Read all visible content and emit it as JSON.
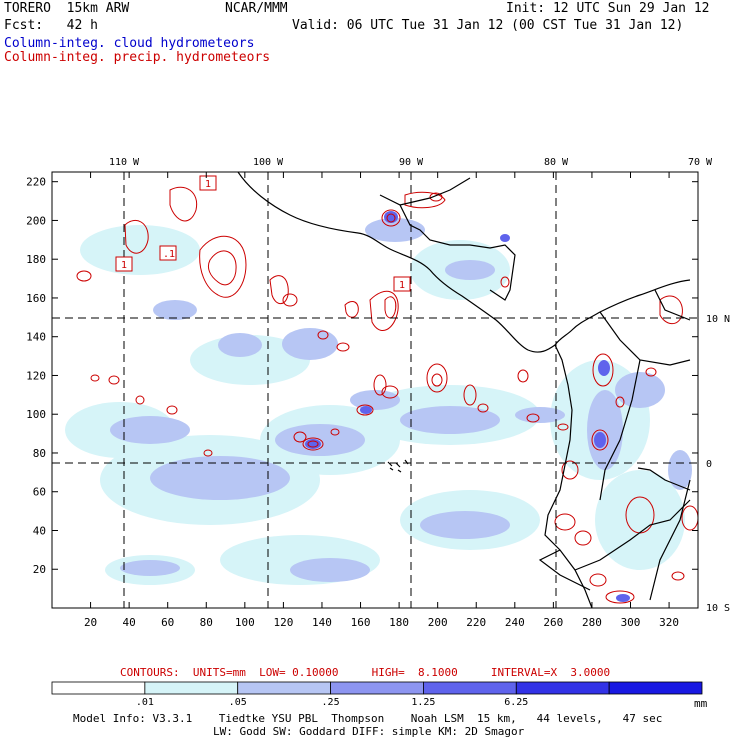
{
  "header": {
    "model": "TORERO  15km ARW",
    "center": "NCAR/MMM",
    "init": "Init: 12 UTC Sun 29 Jan 12",
    "fcst": "Fcst:   42 h",
    "valid": "Valid: 06 UTC Tue 31 Jan 12 (00 CST Tue 31 Jan 12)",
    "field_cloud": "Column-integ. cloud hydrometeors",
    "field_precip": "Column-integ. precip. hydrometeors"
  },
  "contour_info": {
    "line": "CONTOURS:  UNITS=mm  LOW= 0.10000     HIGH=  8.1000     INTERVAL=X  3.0000"
  },
  "colorbar": {
    "labels": [
      ".01",
      ".05",
      ".25",
      "1.25",
      "6.25"
    ],
    "units": "mm",
    "colors": [
      "#ffffff",
      "#d6f4f8",
      "#b7c6f4",
      "#8d95f0",
      "#5f63ec",
      "#3232e6",
      "#1818e2"
    ]
  },
  "model_info": {
    "line1": "Model Info: V3.3.1    Tiedtke YSU PBL  Thompson    Noah LSM  15 km,   44 levels,   47 sec",
    "line2": "LW: Godd SW: Goddard DIFF: simple KM: 2D Smagor"
  },
  "chart_data": {
    "type": "contour-map",
    "title": "Column-integ. cloud hydrometeors / Column-integ. precip. hydrometeors",
    "x_grid": {
      "range": [
        0,
        335
      ],
      "ticks": [
        20,
        40,
        60,
        80,
        100,
        120,
        140,
        160,
        180,
        200,
        220,
        240,
        260,
        280,
        300,
        320
      ]
    },
    "y_grid": {
      "range": [
        0,
        225
      ],
      "ticks": [
        20,
        40,
        60,
        80,
        100,
        120,
        140,
        160,
        180,
        200,
        220
      ]
    },
    "longitudes": [
      "110 W",
      "100 W",
      "90 W",
      "80 W",
      "70 W"
    ],
    "latitudes": [
      "10 N",
      "0",
      "10 S"
    ],
    "contour_labels": [
      "1",
      ".1",
      "1",
      "1"
    ],
    "precip_contour_color": "#cc0000",
    "graticule_style": "dashed"
  }
}
